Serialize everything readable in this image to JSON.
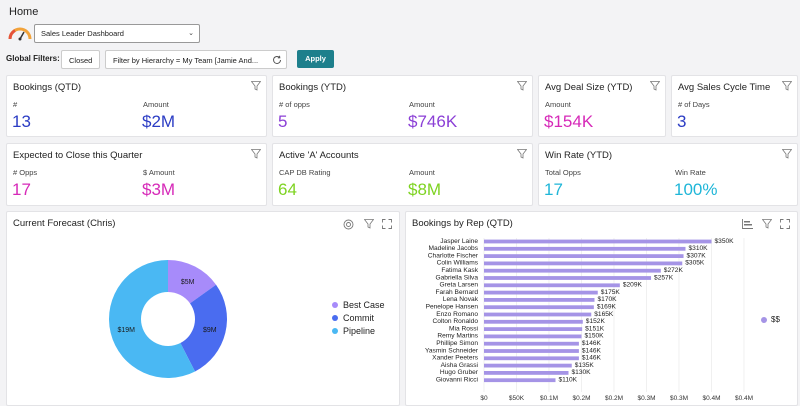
{
  "header": {
    "title": "Home"
  },
  "dashboard_select": {
    "value": "Sales Leader Dashboard"
  },
  "filters": {
    "label": "Global Filters:",
    "closed_chip": "Closed",
    "hierarchy_chip": "Filter by Hierarchy  =  My Team [Jamie And...",
    "apply_label": "Apply"
  },
  "cards": {
    "bookings_qtd": {
      "title": "Bookings (QTD)",
      "m1_label": "#",
      "m1_value": "13",
      "m2_label": "Amount",
      "m2_value": "$2M"
    },
    "bookings_ytd": {
      "title": "Bookings (YTD)",
      "m1_label": "# of opps",
      "m1_value": "5",
      "m2_label": "Amount",
      "m2_value": "$746K"
    },
    "avg_deal": {
      "title": "Avg Deal Size (YTD)",
      "m1_label": "Amount",
      "m1_value": "$154K"
    },
    "avg_cycle": {
      "title": "Avg Sales Cycle Time",
      "m1_label": "# of Days",
      "m1_value": "3"
    },
    "expected_close": {
      "title": "Expected to Close this Quarter",
      "m1_label": "# Opps",
      "m1_value": "17",
      "m2_label": "$ Amount",
      "m2_value": "$3M"
    },
    "active_accounts": {
      "title": "Active 'A' Accounts",
      "m1_label": "CAP DB Rating",
      "m1_value": "64",
      "m2_label": "Amount",
      "m2_value": "$8M"
    },
    "win_rate": {
      "title": "Win Rate (YTD)",
      "m1_label": "Total Opps",
      "m1_value": "17",
      "m2_label": "Win Rate",
      "m2_value": "100%"
    }
  },
  "colors": {
    "blue": "#2b3cc4",
    "purple": "#8b3fd6",
    "magenta": "#d629b8",
    "green": "#7ed321",
    "cyan": "#1fb6d8",
    "bar": "#a594e6",
    "best_case": "#a78bfa",
    "commit": "#4a6cf0",
    "pipeline": "#4ab8f3"
  },
  "forecast": {
    "title": "Current Forecast (Chris)",
    "chart_data": {
      "type": "pie",
      "title": "Current Forecast (Chris)",
      "labels": [
        "Best Case",
        "Commit",
        "Pipeline"
      ],
      "values": [
        5,
        9,
        19
      ],
      "display_labels": [
        "$5M",
        "$9M",
        "$19M"
      ],
      "legend": "right"
    }
  },
  "bookings_by_rep": {
    "title": "Bookings by Rep (QTD)",
    "legend_label": "$$",
    "chart_data": {
      "type": "bar",
      "orientation": "horizontal",
      "title": "Bookings by Rep (QTD)",
      "categories": [
        "Jasper Laine",
        "Madeline Jacobs",
        "Charlotte Fischer",
        "Colin Williams",
        "Fatima Kask",
        "Gabriella Silva",
        "Greta Larsen",
        "Farah Bernard",
        "Lena Novak",
        "Penelope Hansen",
        "Enzo Romano",
        "Colton Ronaldo",
        "Mia Rossi",
        "Remy Martins",
        "Phillipe Simon",
        "Yasmin Schneider",
        "Xander Peeters",
        "Aisha Grassi",
        "Hugo Gruber",
        "Giovanni Ricci"
      ],
      "values": [
        350,
        310,
        307,
        305,
        272,
        257,
        209,
        175,
        170,
        169,
        165,
        152,
        151,
        150,
        146,
        146,
        146,
        135,
        130,
        110
      ],
      "value_labels": [
        "$350K",
        "$310K",
        "$307K",
        "$305K",
        "$272K",
        "$257K",
        "$209K",
        "$175K",
        "$170K",
        "$169K",
        "$165K",
        "$152K",
        "$151K",
        "$150K",
        "$146K",
        "$146K",
        "$146K",
        "$135K",
        "$130K",
        "$110K"
      ],
      "xlim": [
        0,
        400
      ],
      "xticks": [
        "$0",
        "$50K",
        "$0.1M",
        "$0.2M",
        "$0.2M",
        "$0.3M",
        "$0.3M",
        "$0.4M",
        "$0.4M"
      ],
      "series": [
        {
          "name": "$$"
        }
      ]
    }
  }
}
